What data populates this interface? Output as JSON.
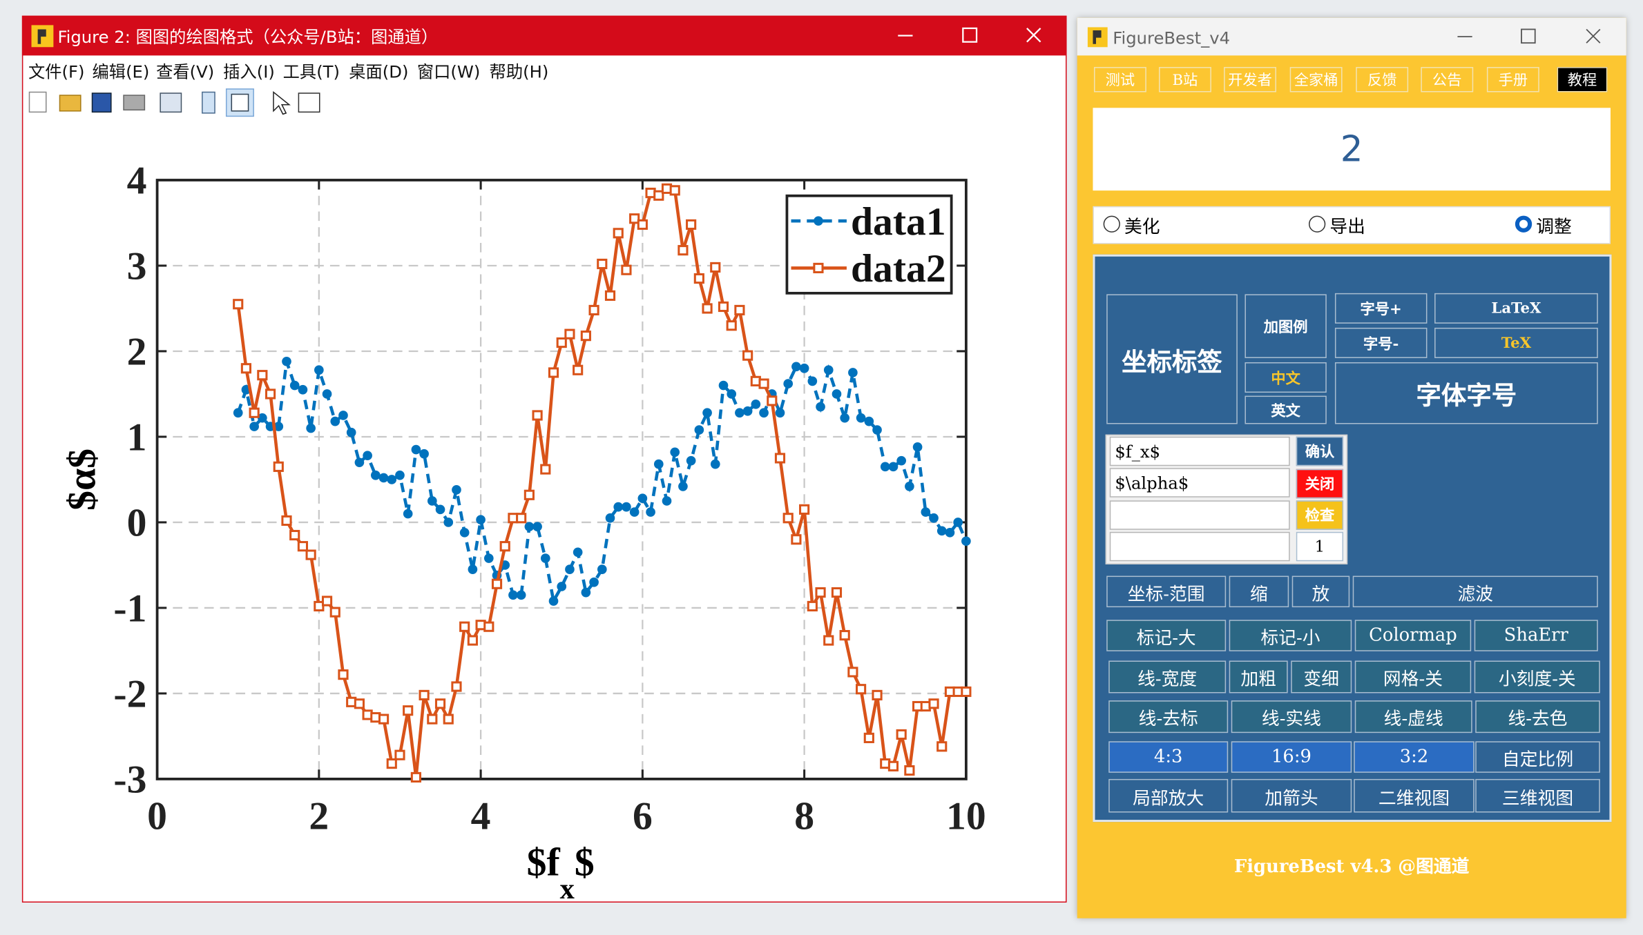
{
  "figure_window": {
    "title": "Figure 2: 图图的绘图格式（公众号/B站：图通道）",
    "menu": [
      "文件(F)",
      "编辑(E)",
      "查看(V)",
      "插入(I)",
      "工具(T)",
      "桌面(D)",
      "窗口(W)",
      "帮助(H)"
    ]
  },
  "chart_data": {
    "type": "line",
    "x": [
      1,
      1.1,
      1.2,
      1.3,
      1.4,
      1.5,
      1.6,
      1.7,
      1.8,
      1.9,
      2,
      2.1,
      2.2,
      2.3,
      2.4,
      2.5,
      2.6,
      2.7,
      2.8,
      2.9,
      3,
      3.1,
      3.2,
      3.3,
      3.4,
      3.5,
      3.6,
      3.7,
      3.8,
      3.9,
      4,
      4.1,
      4.2,
      4.3,
      4.4,
      4.5,
      4.6,
      4.7,
      4.8,
      4.9,
      5,
      5.1,
      5.2,
      5.3,
      5.4,
      5.5,
      5.6,
      5.7,
      5.8,
      5.9,
      6,
      6.1,
      6.2,
      6.3,
      6.4,
      6.5,
      6.6,
      6.7,
      6.8,
      6.9,
      7,
      7.1,
      7.2,
      7.3,
      7.4,
      7.5,
      7.6,
      7.7,
      7.8,
      7.9,
      8,
      8.1,
      8.2,
      8.3,
      8.4,
      8.5,
      8.6,
      8.7,
      8.8,
      8.9,
      9,
      9.1,
      9.2,
      9.3,
      9.4,
      9.5,
      9.6,
      9.7,
      9.8,
      9.9,
      10
    ],
    "series": [
      {
        "name": "data1",
        "color": "#0072bd",
        "line_style": "dashed",
        "marker": "circle",
        "values": [
          1.28,
          1.55,
          1.12,
          1.22,
          1.12,
          1.12,
          1.88,
          1.6,
          1.55,
          1.1,
          1.78,
          1.5,
          1.18,
          1.25,
          1.05,
          0.7,
          0.78,
          0.55,
          0.52,
          0.5,
          0.55,
          0.1,
          0.85,
          0.8,
          0.25,
          0.15,
          0,
          0.38,
          -0.12,
          -0.55,
          0.03,
          -0.42,
          -0.62,
          -0.5,
          -0.85,
          -0.85,
          -0.05,
          -0.05,
          -0.42,
          -0.92,
          -0.75,
          -0.55,
          -0.35,
          -0.82,
          -0.7,
          -0.55,
          0.05,
          0.18,
          0.18,
          0.12,
          0.28,
          0.12,
          0.68,
          0.25,
          0.82,
          0.42,
          0.72,
          1.08,
          1.28,
          0.68,
          1.6,
          1.5,
          1.28,
          1.3,
          1.38,
          1.28,
          1.5,
          1.28,
          1.62,
          1.82,
          1.8,
          1.65,
          1.35,
          1.78,
          1.5,
          1.22,
          1.75,
          1.22,
          1.18,
          1.08,
          0.65,
          0.65,
          0.72,
          0.42,
          0.88,
          0.12,
          0.05,
          -0.1,
          -0.12,
          0,
          -0.22
        ]
      },
      {
        "name": "data2",
        "color": "#d95319",
        "line_style": "solid",
        "marker": "square",
        "values": [
          2.55,
          1.8,
          1.28,
          1.72,
          1.5,
          0.65,
          0.02,
          -0.15,
          -0.28,
          -0.38,
          -0.98,
          -0.92,
          -1.05,
          -1.78,
          -2.1,
          -2.12,
          -2.25,
          -2.28,
          -2.3,
          -2.82,
          -2.72,
          -2.2,
          -2.98,
          -2.02,
          -2.3,
          -2.12,
          -2.3,
          -1.92,
          -1.22,
          -1.38,
          -1.2,
          -1.22,
          -0.72,
          -0.28,
          0.05,
          0.05,
          0.32,
          1.25,
          0.62,
          1.75,
          2.1,
          2.2,
          1.78,
          2.18,
          2.48,
          3.02,
          2.65,
          3.38,
          2.95,
          3.55,
          3.48,
          3.85,
          3.82,
          3.9,
          3.88,
          3.18,
          3.48,
          2.85,
          2.5,
          2.98,
          2.52,
          2.3,
          2.48,
          1.95,
          1.65,
          1.62,
          1.42,
          0.75,
          0.05,
          -0.2,
          0.15,
          -0.98,
          -0.82,
          -1.38,
          -0.82,
          -1.32,
          -1.75,
          -1.95,
          -2.52,
          -2.02,
          -2.82,
          -2.85,
          -2.48,
          -2.9,
          -2.15,
          -2.15,
          -2.12,
          -2.62,
          -1.98,
          -1.98,
          -1.98
        ]
      }
    ],
    "xlim": [
      0,
      10
    ],
    "xticks": [
      0,
      2,
      4,
      6,
      8,
      10
    ],
    "ylim": [
      -3,
      4
    ],
    "yticks": [
      -3,
      -2,
      -1,
      0,
      1,
      2,
      3,
      4
    ],
    "grid": true,
    "legend": "upper right",
    "xlabel": {
      "text": "$f",
      "subscript": "x",
      "suffix": "$"
    },
    "ylabel": "$α$"
  },
  "tool_window": {
    "title": "FigureBest_v4",
    "tabs": [
      "测试",
      "B站",
      "开发者",
      "全家桶",
      "反馈",
      "公告",
      "手册",
      "教程"
    ],
    "display": "2",
    "modes": [
      {
        "label": "美化",
        "selected": false
      },
      {
        "label": "导出",
        "selected": false
      },
      {
        "label": "调整",
        "selected": true
      }
    ],
    "panel": {
      "axis_label": "坐标标签",
      "add_legend": "加图例",
      "chinese": "中文",
      "english": "英文",
      "font_plus": "字号+",
      "font_minus": "字号-",
      "latex": "LaTeX",
      "tex": "TeX",
      "font_size": "字体字号",
      "inputs": [
        "$f_x$",
        "$\\alpha$"
      ],
      "confirm": "确认",
      "close": "关闭",
      "check": "检查",
      "counter": "1",
      "rows": [
        [
          "坐标-范围",
          "缩",
          "放",
          "滤波"
        ],
        [
          "标记-大",
          "标记-小",
          "Colormap",
          "ShaErr"
        ],
        [
          "线-宽度",
          "加粗",
          "变细",
          "网格-关",
          "小刻度-关"
        ],
        [
          "线-去标",
          "线-实线",
          "线-虚线",
          "线-去色"
        ],
        [
          "4:3",
          "16:9",
          "3:2",
          "自定比例"
        ],
        [
          "局部放大",
          "加箭头",
          "二维视图",
          "三维视图"
        ]
      ]
    },
    "footer": "FigureBest v4.3 @图通道"
  }
}
